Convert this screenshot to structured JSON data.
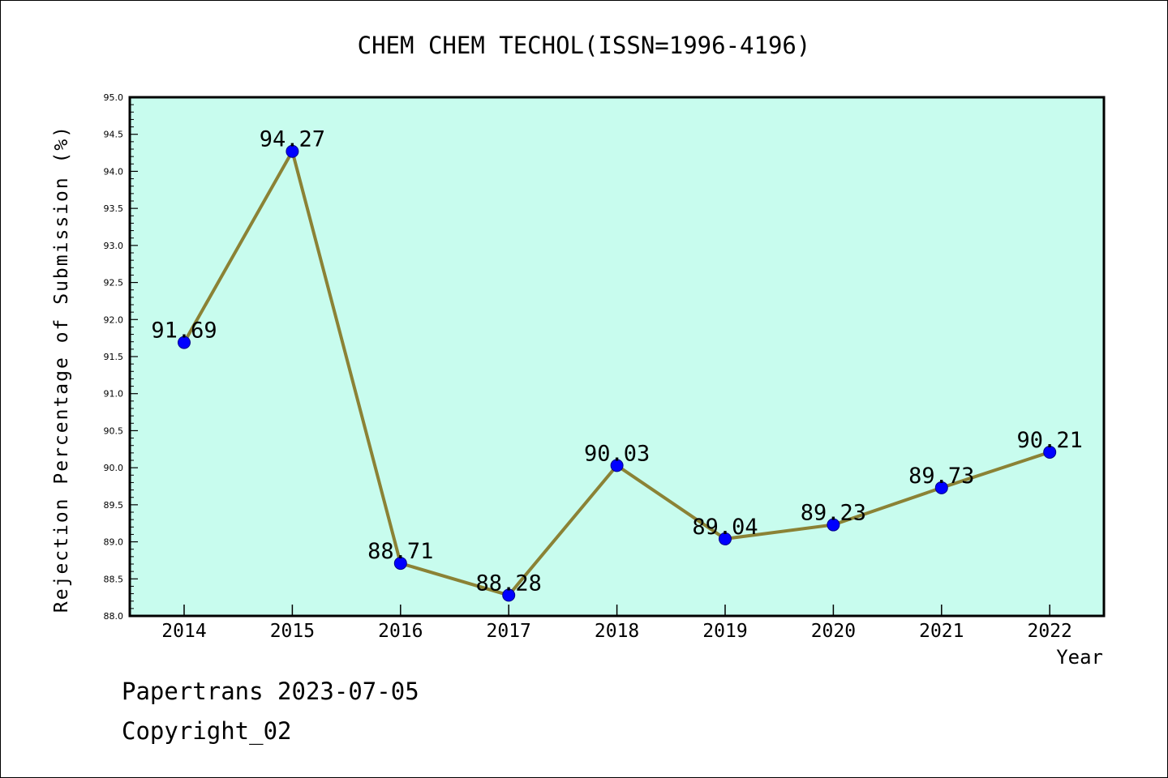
{
  "chart_data": {
    "type": "line",
    "title": "CHEM CHEM TECHOL(ISSN=1996-4196)",
    "xlabel": "Year",
    "ylabel": "Rejection Percentage of Submission (%)",
    "categories": [
      "2014",
      "2015",
      "2016",
      "2017",
      "2018",
      "2019",
      "2020",
      "2021",
      "2022"
    ],
    "series": [
      {
        "values": [
          91.69,
          94.27,
          88.71,
          88.28,
          90.03,
          89.04,
          89.23,
          89.73,
          90.21
        ]
      }
    ],
    "data_labels": [
      "91.69",
      "94.27",
      "88.71",
      "88.28",
      "90.03",
      "89.04",
      "89.23",
      "89.73",
      "90.21"
    ],
    "ylim": [
      88.0,
      95.0
    ],
    "yticks": [
      "88.0",
      "88.5",
      "89.0",
      "89.5",
      "90.0",
      "90.5",
      "91.0",
      "91.5",
      "92.0",
      "92.5",
      "93.0",
      "93.5",
      "94.0",
      "94.5",
      "95.0"
    ],
    "grid": false,
    "colors": {
      "plot_background": "#c8fcee",
      "line": "#8b8235",
      "marker": "#0000ff",
      "marker_edge": "#00008b"
    }
  },
  "footer": {
    "line1": "Papertrans 2023-07-05",
    "line2": "Copyright_02"
  }
}
